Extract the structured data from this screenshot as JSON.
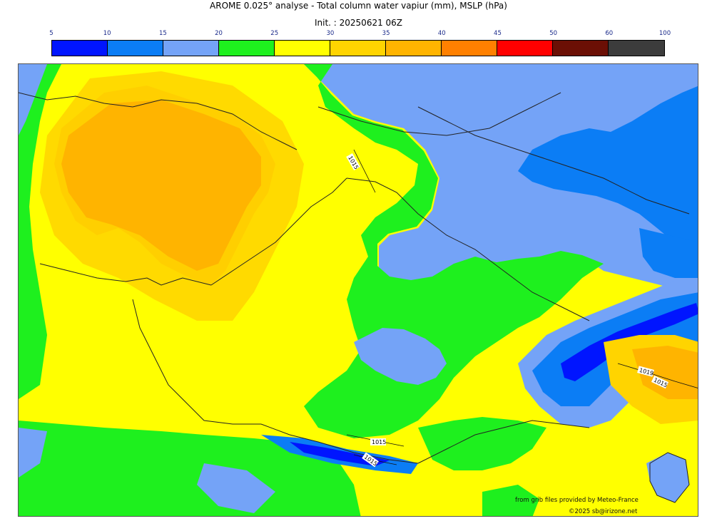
{
  "title": "AROME 0.025° analyse - Total column water vapiur (mm), MSLP (hPa)",
  "subtitle": "Init. : 20250621 06Z",
  "colorbar": {
    "ticks": [
      "5",
      "10",
      "15",
      "20",
      "25",
      "30",
      "35",
      "40",
      "45",
      "50",
      "60",
      "100"
    ],
    "colors": [
      "#0015ff",
      "#0b7df5",
      "#74a3f7",
      "#1ef01e",
      "#ffff00",
      "#ffd400",
      "#ffb400",
      "#ff8000",
      "#ff0000",
      "#6b0f05",
      "#3c3c3c"
    ]
  },
  "map": {
    "isobars": [
      {
        "label": "1015"
      },
      {
        "label": "1015"
      },
      {
        "label": "1015"
      },
      {
        "label": "1019"
      },
      {
        "label": "1015"
      }
    ]
  },
  "credits": {
    "source": "from grib files provided by Meteo-France",
    "copyright": "©2025 sb@irizone.net"
  }
}
